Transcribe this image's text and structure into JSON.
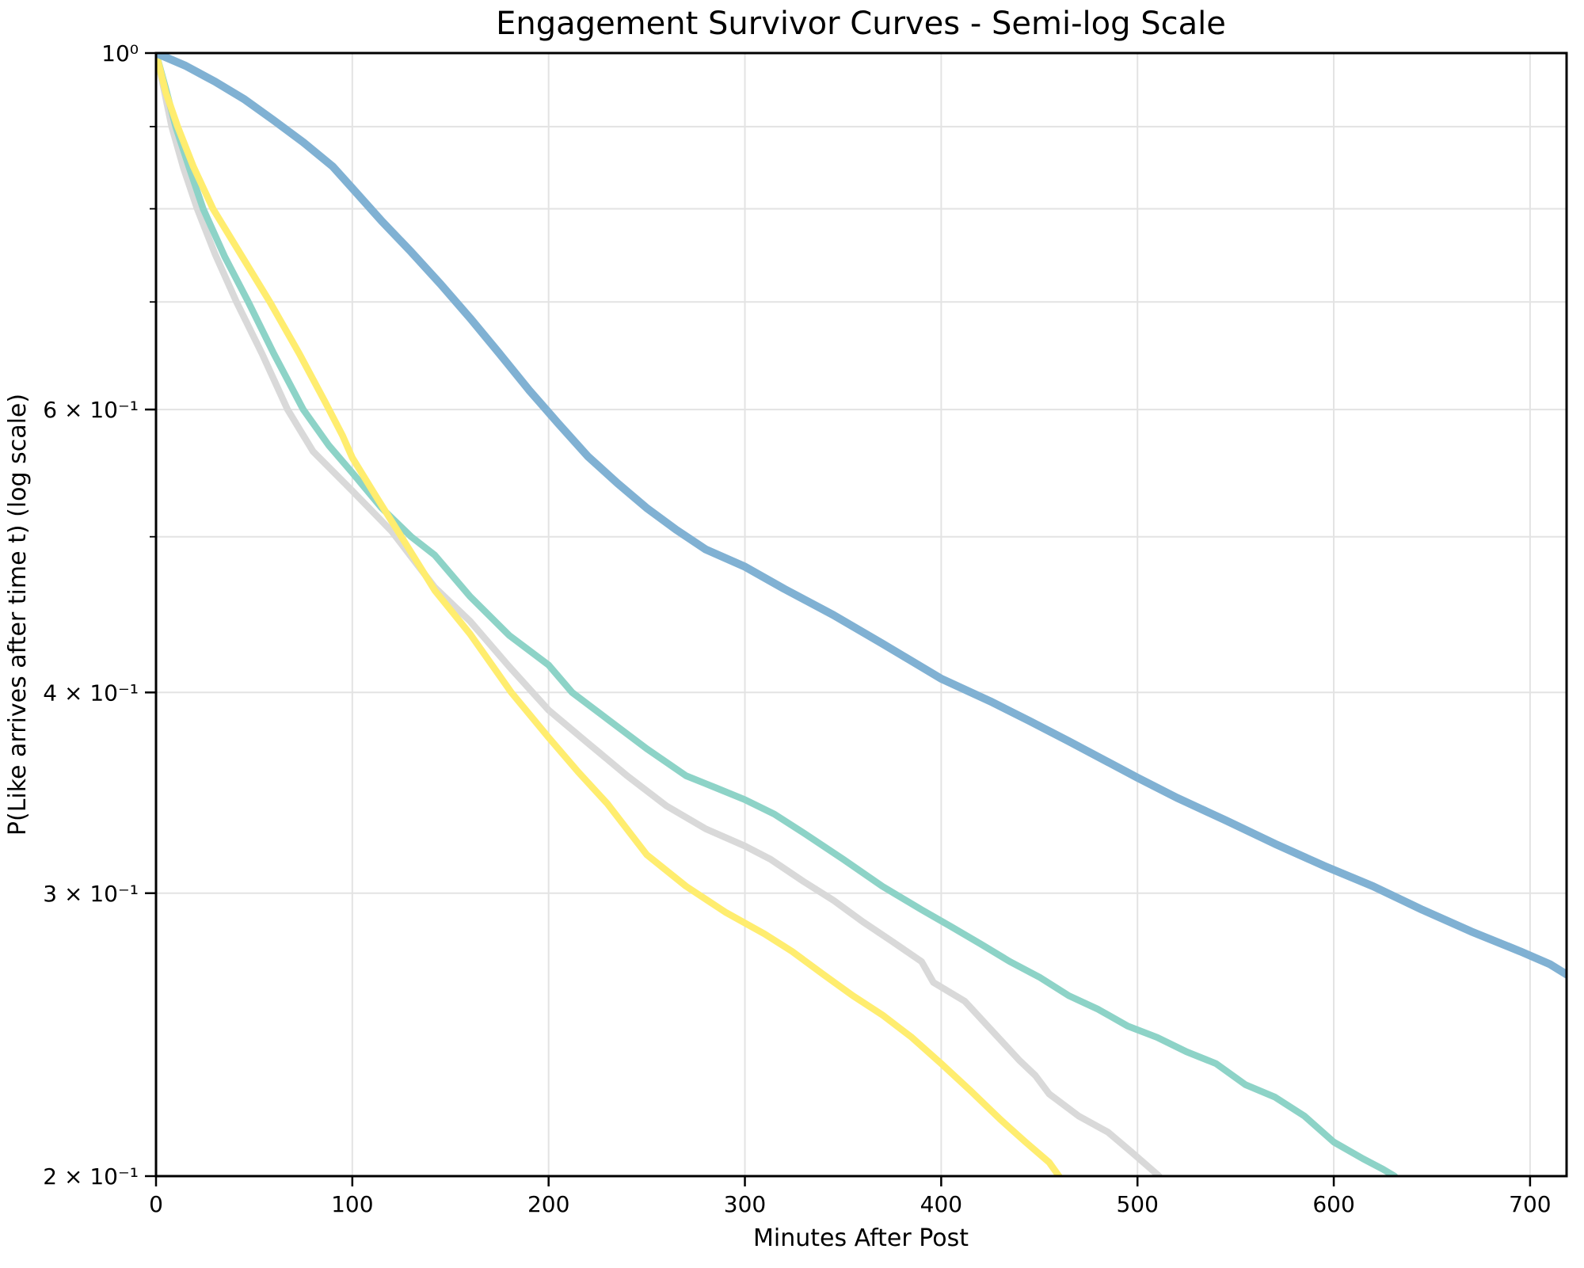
{
  "title": "Engagement Survivor Curves - Semi-log Scale",
  "chart_data": {
    "type": "line",
    "title": "Engagement Survivor Curves - Semi-log Scale",
    "xlabel": "Minutes After Post",
    "ylabel": "P(Like arrives after time t) (log scale)",
    "xlim": [
      0,
      718.6
    ],
    "ylim": [
      0.2,
      1.0
    ],
    "yscale": "log",
    "grid": true,
    "legend_position": "none",
    "x_ticks": [
      {
        "value": 0,
        "label": "0"
      },
      {
        "value": 100,
        "label": "100"
      },
      {
        "value": 200,
        "label": "200"
      },
      {
        "value": 300,
        "label": "300"
      },
      {
        "value": 400,
        "label": "400"
      },
      {
        "value": 500,
        "label": "500"
      },
      {
        "value": 600,
        "label": "600"
      },
      {
        "value": 700,
        "label": "700"
      }
    ],
    "y_ticks": [
      {
        "value": 1.0,
        "label": "10⁰"
      },
      {
        "value": 0.6,
        "label": "6 × 10⁻¹"
      },
      {
        "value": 0.4,
        "label": "4 × 10⁻¹"
      },
      {
        "value": 0.3,
        "label": "3 × 10⁻¹"
      },
      {
        "value": 0.2,
        "label": "2 × 10⁻¹"
      }
    ],
    "y_minor_gridlines": [
      0.9,
      0.8,
      0.7,
      0.5
    ],
    "colors": {
      "grid": "#e3e3e3",
      "spine": "#000000",
      "background": "#ffffff"
    },
    "series": [
      {
        "name": "gray",
        "color": "#d9d9d9",
        "points": [
          [
            0,
            1.0
          ],
          [
            4,
            0.95
          ],
          [
            8,
            0.9
          ],
          [
            14,
            0.848
          ],
          [
            21,
            0.8
          ],
          [
            30,
            0.75
          ],
          [
            41,
            0.7
          ],
          [
            54,
            0.65
          ],
          [
            67,
            0.6
          ],
          [
            80,
            0.565
          ],
          [
            100,
            0.534
          ],
          [
            120,
            0.504
          ],
          [
            142,
            0.465
          ],
          [
            160,
            0.443
          ],
          [
            180,
            0.415
          ],
          [
            200,
            0.39
          ],
          [
            220,
            0.372
          ],
          [
            240,
            0.355
          ],
          [
            260,
            0.34
          ],
          [
            280,
            0.329
          ],
          [
            300,
            0.321
          ],
          [
            313,
            0.315
          ],
          [
            330,
            0.305
          ],
          [
            345,
            0.297
          ],
          [
            360,
            0.288
          ],
          [
            375,
            0.28
          ],
          [
            390,
            0.272
          ],
          [
            396,
            0.264
          ],
          [
            412,
            0.257
          ],
          [
            425,
            0.247
          ],
          [
            440,
            0.236
          ],
          [
            448,
            0.231
          ],
          [
            455,
            0.225
          ],
          [
            470,
            0.218
          ],
          [
            485,
            0.213
          ],
          [
            497,
            0.207
          ],
          [
            505,
            0.203
          ],
          [
            511,
            0.2
          ]
        ]
      },
      {
        "name": "teal",
        "color": "#8dd3c7",
        "points": [
          [
            0,
            1.0
          ],
          [
            5,
            0.95
          ],
          [
            10,
            0.9
          ],
          [
            17,
            0.848
          ],
          [
            24,
            0.8
          ],
          [
            35,
            0.747
          ],
          [
            47,
            0.7
          ],
          [
            60,
            0.65
          ],
          [
            75,
            0.6
          ],
          [
            88,
            0.57
          ],
          [
            100,
            0.548
          ],
          [
            115,
            0.521
          ],
          [
            130,
            0.5
          ],
          [
            142,
            0.487
          ],
          [
            160,
            0.459
          ],
          [
            180,
            0.434
          ],
          [
            200,
            0.416
          ],
          [
            212,
            0.4
          ],
          [
            230,
            0.385
          ],
          [
            250,
            0.369
          ],
          [
            270,
            0.355
          ],
          [
            285,
            0.349
          ],
          [
            300,
            0.343
          ],
          [
            315,
            0.336
          ],
          [
            330,
            0.327
          ],
          [
            350,
            0.315
          ],
          [
            370,
            0.303
          ],
          [
            390,
            0.293
          ],
          [
            405,
            0.286
          ],
          [
            420,
            0.279
          ],
          [
            435,
            0.272
          ],
          [
            450,
            0.266
          ],
          [
            465,
            0.259
          ],
          [
            480,
            0.254
          ],
          [
            495,
            0.248
          ],
          [
            510,
            0.244
          ],
          [
            525,
            0.239
          ],
          [
            540,
            0.235
          ],
          [
            555,
            0.228
          ],
          [
            570,
            0.224
          ],
          [
            585,
            0.218
          ],
          [
            600,
            0.21
          ],
          [
            615,
            0.205
          ],
          [
            625,
            0.202
          ],
          [
            631,
            0.2
          ]
        ]
      },
      {
        "name": "yellow",
        "color": "#ffed6f",
        "points": [
          [
            0,
            1.0
          ],
          [
            5,
            0.945
          ],
          [
            11,
            0.9
          ],
          [
            19,
            0.85
          ],
          [
            29,
            0.8
          ],
          [
            43,
            0.75
          ],
          [
            58,
            0.7
          ],
          [
            73,
            0.65
          ],
          [
            86,
            0.607
          ],
          [
            95,
            0.578
          ],
          [
            100,
            0.56
          ],
          [
            112,
            0.53
          ],
          [
            125,
            0.5
          ],
          [
            142,
            0.463
          ],
          [
            160,
            0.435
          ],
          [
            181,
            0.4
          ],
          [
            200,
            0.375
          ],
          [
            215,
            0.357
          ],
          [
            230,
            0.341
          ],
          [
            250,
            0.317
          ],
          [
            270,
            0.303
          ],
          [
            290,
            0.292
          ],
          [
            310,
            0.283
          ],
          [
            324,
            0.276
          ],
          [
            340,
            0.267
          ],
          [
            355,
            0.259
          ],
          [
            370,
            0.252
          ],
          [
            385,
            0.244
          ],
          [
            400,
            0.235
          ],
          [
            415,
            0.226
          ],
          [
            430,
            0.217
          ],
          [
            443,
            0.21
          ],
          [
            455,
            0.204
          ],
          [
            460,
            0.2
          ]
        ]
      },
      {
        "name": "blue",
        "color": "#80b1d3",
        "points": [
          [
            0,
            1.0
          ],
          [
            15,
            0.982
          ],
          [
            30,
            0.96
          ],
          [
            45,
            0.936
          ],
          [
            60,
            0.908
          ],
          [
            75,
            0.88
          ],
          [
            90,
            0.85
          ],
          [
            100,
            0.824
          ],
          [
            115,
            0.786
          ],
          [
            130,
            0.752
          ],
          [
            145,
            0.718
          ],
          [
            160,
            0.684
          ],
          [
            175,
            0.65
          ],
          [
            190,
            0.617
          ],
          [
            205,
            0.588
          ],
          [
            220,
            0.561
          ],
          [
            235,
            0.54
          ],
          [
            250,
            0.521
          ],
          [
            265,
            0.505
          ],
          [
            280,
            0.491
          ],
          [
            300,
            0.479
          ],
          [
            320,
            0.464
          ],
          [
            345,
            0.447
          ],
          [
            370,
            0.429
          ],
          [
            400,
            0.408
          ],
          [
            425,
            0.395
          ],
          [
            445,
            0.384
          ],
          [
            465,
            0.373
          ],
          [
            485,
            0.362
          ],
          [
            500,
            0.354
          ],
          [
            520,
            0.344
          ],
          [
            545,
            0.333
          ],
          [
            570,
            0.322
          ],
          [
            595,
            0.312
          ],
          [
            620,
            0.303
          ],
          [
            645,
            0.293
          ],
          [
            670,
            0.284
          ],
          [
            695,
            0.276
          ],
          [
            710,
            0.271
          ],
          [
            718.6,
            0.267
          ]
        ]
      }
    ]
  }
}
